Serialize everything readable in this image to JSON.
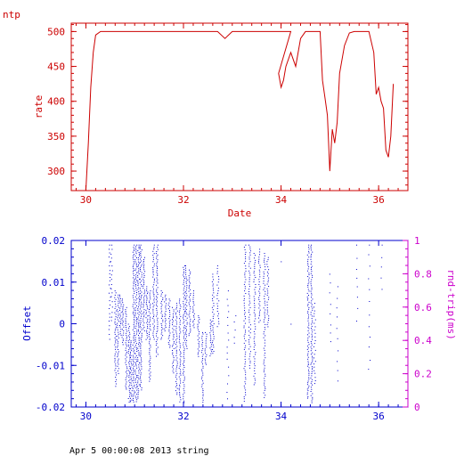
{
  "header": {
    "label": "ntp"
  },
  "footer": {
    "text": "Apr  5 00:00:08 2013 string"
  },
  "colors": {
    "rate": "#cc0000",
    "offset": "#0000cc",
    "rtt": "#cc00cc"
  },
  "chart_data": [
    {
      "type": "line",
      "xlabel": "Date",
      "ylabel": "rate",
      "xlim": [
        29.7,
        36.6
      ],
      "ylim": [
        272,
        512
      ],
      "x_ticks": [
        30,
        32,
        34,
        36
      ],
      "y_ticks": [
        300,
        350,
        400,
        450,
        500
      ],
      "series": [
        {
          "x": [
            30.0,
            30.05,
            30.1,
            30.15,
            30.2,
            30.3,
            30.5,
            31.0,
            31.5,
            32.0,
            32.5,
            32.7,
            32.85,
            33.0,
            33.2,
            33.5,
            34.0,
            34.2,
            33.95,
            34.0,
            34.05,
            34.1,
            34.2,
            34.3,
            34.4,
            34.5,
            34.8,
            34.85,
            34.9,
            34.95,
            35.0,
            35.05,
            35.1,
            35.15,
            35.2,
            35.3,
            35.4,
            35.5,
            35.8,
            35.9,
            35.95,
            36.0,
            36.05,
            36.1,
            36.15,
            36.2,
            36.25,
            36.3
          ],
          "y": [
            272,
            340,
            420,
            470,
            495,
            500,
            500,
            500,
            500,
            500,
            500,
            500,
            490,
            500,
            500,
            500,
            500,
            500,
            440,
            420,
            430,
            450,
            470,
            450,
            490,
            500,
            500,
            430,
            405,
            380,
            300,
            360,
            340,
            370,
            440,
            480,
            498,
            500,
            500,
            470,
            410,
            420,
            400,
            390,
            330,
            320,
            350,
            425
          ]
        }
      ]
    },
    {
      "type": "scatter",
      "xlabel": "",
      "ylabel": "Offset",
      "y2label": "rnd-trip(ms)",
      "xlim": [
        29.7,
        36.6
      ],
      "ylim": [
        -0.02,
        0.02
      ],
      "y2lim": [
        0,
        1
      ],
      "x_ticks": [
        30,
        32,
        34,
        36
      ],
      "y_ticks": [
        -0.02,
        -0.01,
        0,
        0.01,
        0.02
      ],
      "y_tick_labels": [
        "-0.02",
        "-0.01",
        "0",
        "0.01",
        "0.02"
      ],
      "y2_ticks": [
        0,
        0.2,
        0.4,
        0.6,
        0.8,
        1
      ],
      "series": [
        {
          "name": "offset",
          "x_range": [
            30.45,
            36.1
          ],
          "y_range": [
            -0.02,
            0.02
          ]
        }
      ]
    }
  ]
}
